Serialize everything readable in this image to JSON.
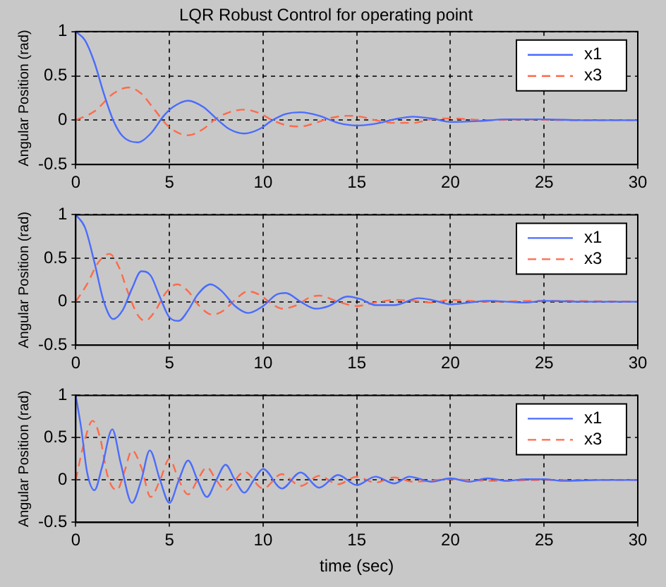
{
  "chart_data": [
    {
      "type": "line",
      "title": "LQR Robust Control for operating point",
      "ylabel": "Angular Position (rad)",
      "xlim": [
        0,
        30
      ],
      "xticks": [
        0,
        5,
        10,
        15,
        20,
        25,
        30
      ],
      "ylim": [
        -0.5,
        1
      ],
      "yticks": [
        -0.5,
        0,
        0.5,
        1
      ],
      "grid": true,
      "legend": "top right",
      "marker": "none",
      "series": [
        {
          "name": "x1",
          "color": "#4a6cff",
          "line_style": "solid",
          "x": [
            0,
            0.5,
            1,
            1.5,
            2,
            2.5,
            3.3,
            4,
            4.7,
            5.2,
            6,
            6.8,
            7.5,
            8.2,
            9,
            9.8,
            10.5,
            11.2,
            12,
            13,
            14,
            15,
            16,
            17,
            18,
            19,
            20,
            21.5,
            23,
            25,
            27,
            30
          ],
          "values": [
            1,
            0.9,
            0.65,
            0.3,
            0,
            -0.18,
            -0.25,
            -0.15,
            0.05,
            0.15,
            0.22,
            0.15,
            0.02,
            -0.1,
            -0.15,
            -0.1,
            0,
            0.07,
            0.09,
            0.05,
            -0.03,
            -0.06,
            -0.04,
            0.01,
            0.04,
            0.02,
            -0.02,
            -0.01,
            0.01,
            0.01,
            0,
            0
          ]
        },
        {
          "name": "x3",
          "color": "#ff6a4a",
          "line_style": "dashed",
          "x": [
            0,
            1,
            2,
            2.8,
            3.5,
            4.2,
            5,
            6,
            6.8,
            7.5,
            8.2,
            9,
            9.8,
            10.5,
            11.3,
            12,
            12.8,
            13.5,
            14.5,
            15.2,
            16,
            17,
            18,
            19,
            20,
            22,
            24,
            26,
            30
          ],
          "values": [
            0,
            0.1,
            0.3,
            0.37,
            0.3,
            0.12,
            -0.08,
            -0.17,
            -0.1,
            0.02,
            0.09,
            0.12,
            0.08,
            0,
            -0.06,
            -0.07,
            -0.03,
            0.02,
            0.05,
            0.04,
            0,
            -0.03,
            -0.03,
            0.01,
            0.02,
            0,
            0.01,
            0,
            0
          ]
        }
      ]
    },
    {
      "type": "line",
      "ylabel": "Angular Position (rad)",
      "xlim": [
        0,
        30
      ],
      "xticks": [
        0,
        5,
        10,
        15,
        20,
        25,
        30
      ],
      "ylim": [
        -0.5,
        1
      ],
      "yticks": [
        -0.5,
        0,
        0.5,
        1
      ],
      "grid": true,
      "legend": "top right",
      "marker": "none",
      "series": [
        {
          "name": "x1",
          "color": "#4a6cff",
          "line_style": "solid",
          "x": [
            0,
            0.5,
            1,
            1.5,
            2,
            2.5,
            3,
            3.5,
            4,
            4.5,
            5,
            5.5,
            6,
            6.5,
            7.2,
            7.8,
            8.5,
            9.2,
            10,
            10.7,
            11.2,
            12,
            12.8,
            13.5,
            14.5,
            15.2,
            16,
            17,
            18.3,
            19,
            20,
            21,
            22,
            24,
            25,
            27,
            30
          ],
          "values": [
            1,
            0.85,
            0.45,
            0,
            -0.2,
            -0.1,
            0.15,
            0.35,
            0.3,
            0.05,
            -0.18,
            -0.22,
            -0.1,
            0.08,
            0.2,
            0.12,
            -0.05,
            -0.13,
            -0.05,
            0.08,
            0.1,
            0,
            -0.08,
            -0.05,
            0.06,
            0.03,
            -0.04,
            -0.04,
            0.04,
            0.02,
            -0.03,
            -0.01,
            0.01,
            -0.01,
            0.01,
            0,
            0
          ]
        },
        {
          "name": "x3",
          "color": "#ff6a4a",
          "line_style": "dashed",
          "x": [
            0,
            0.6,
            1.2,
            1.8,
            2.3,
            2.8,
            3.3,
            3.7,
            4.2,
            4.8,
            5.4,
            6,
            6.6,
            7.3,
            7.9,
            8.5,
            9.2,
            9.8,
            10.5,
            11,
            11.8,
            12.5,
            13,
            14,
            15,
            16,
            17,
            18,
            19,
            20,
            22,
            25,
            30
          ],
          "values": [
            0,
            0.2,
            0.45,
            0.55,
            0.4,
            0.1,
            -0.15,
            -0.22,
            -0.12,
            0.1,
            0.2,
            0.12,
            -0.05,
            -0.15,
            -0.1,
            0.02,
            0.12,
            0.08,
            -0.03,
            -0.08,
            -0.04,
            0.05,
            0.07,
            0,
            -0.05,
            -0.01,
            0.02,
            0.01,
            -0.01,
            0.02,
            0,
            0.01,
            0
          ]
        }
      ]
    },
    {
      "type": "line",
      "ylabel": "Angular Position (rad)",
      "xlabel": "time (sec)",
      "xlim": [
        0,
        30
      ],
      "xticks": [
        0,
        5,
        10,
        15,
        20,
        25,
        30
      ],
      "ylim": [
        -0.5,
        1
      ],
      "yticks": [
        -0.5,
        0,
        0.5,
        1
      ],
      "grid": true,
      "legend": "top right",
      "marker": "none",
      "series": [
        {
          "name": "x1",
          "color": "#4a6cff",
          "line_style": "solid",
          "x": [
            0,
            0.3,
            0.6,
            1,
            1.4,
            1.95,
            2.4,
            3,
            3.5,
            3.95,
            4.5,
            5,
            5.5,
            6,
            6.5,
            7,
            7.5,
            8,
            8.5,
            9,
            9.5,
            10,
            11,
            12,
            13,
            14,
            15,
            16,
            17,
            17.8,
            19,
            20,
            21,
            22,
            23,
            24,
            25,
            26,
            28,
            30
          ],
          "values": [
            1,
            0.6,
            0.1,
            -0.12,
            0.15,
            0.6,
            0.2,
            -0.27,
            0,
            0.35,
            0,
            -0.27,
            0,
            0.23,
            0,
            -0.2,
            0,
            0.18,
            0,
            -0.15,
            0,
            0.13,
            -0.1,
            0.09,
            -0.09,
            0.06,
            -0.06,
            0.04,
            -0.04,
            0.04,
            -0.02,
            0.02,
            -0.02,
            0.02,
            -0.01,
            0.01,
            0.01,
            -0.01,
            0,
            0
          ]
        },
        {
          "name": "x3",
          "color": "#ff6a4a",
          "line_style": "dashed",
          "x": [
            0,
            0.4,
            0.9,
            1.3,
            1.7,
            2.2,
            2.6,
            3,
            3.5,
            4,
            4.5,
            5,
            5.5,
            6,
            6.5,
            7,
            7.5,
            8,
            8.5,
            9,
            10,
            11,
            12,
            13,
            14,
            15,
            16,
            17,
            18,
            20,
            22,
            25,
            30
          ],
          "values": [
            0,
            0.4,
            0.7,
            0.5,
            0.05,
            -0.12,
            0.1,
            0.35,
            0.15,
            -0.2,
            0,
            0.25,
            0,
            -0.17,
            0,
            0.15,
            0,
            -0.12,
            0,
            0.1,
            -0.1,
            0.07,
            -0.07,
            0.05,
            -0.05,
            0.04,
            -0.03,
            0.03,
            -0.02,
            0.01,
            -0.01,
            0,
            0
          ]
        }
      ]
    }
  ]
}
